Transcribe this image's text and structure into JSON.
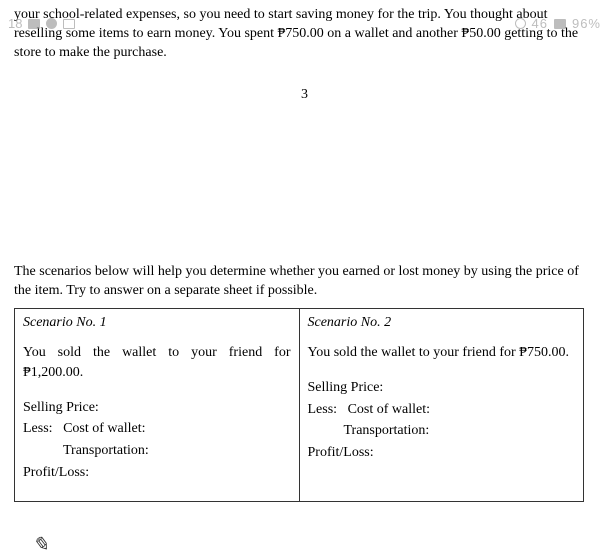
{
  "statusBar": {
    "time": "18",
    "rightA": "46",
    "battery": "96%"
  },
  "intro": {
    "body": "your school-related expenses, so you need to start saving money for the trip. You thought about reselling some items to earn money. You spent ₱750.00 on a wallet and another ₱50.00 getting to the store to make the purchase."
  },
  "pageNumber": "3",
  "instructions": "The scenarios below will help you determine whether you earned or lost money by using the price of the item. Try to answer on a separate sheet if possible.",
  "table": {
    "cells": [
      {
        "title": "Scenario No. 1",
        "desc": "You sold the wallet to your friend for ₱1,200.00.",
        "justified": true,
        "rows": {
          "r1": "Selling Price:",
          "r2a": "Less:",
          "r2b": "Cost of wallet:",
          "r3": "Transportation:",
          "r4": "Profit/Loss:"
        }
      },
      {
        "title": "Scenario No. 2",
        "desc": "You sold the wallet to your friend for ₱750.00.",
        "justified": false,
        "rows": {
          "r1": "Selling Price:",
          "r2a": "Less:",
          "r2b": "Cost of wallet:",
          "r3": "Transportation:",
          "r4": "Profit/Loss:"
        }
      }
    ]
  }
}
